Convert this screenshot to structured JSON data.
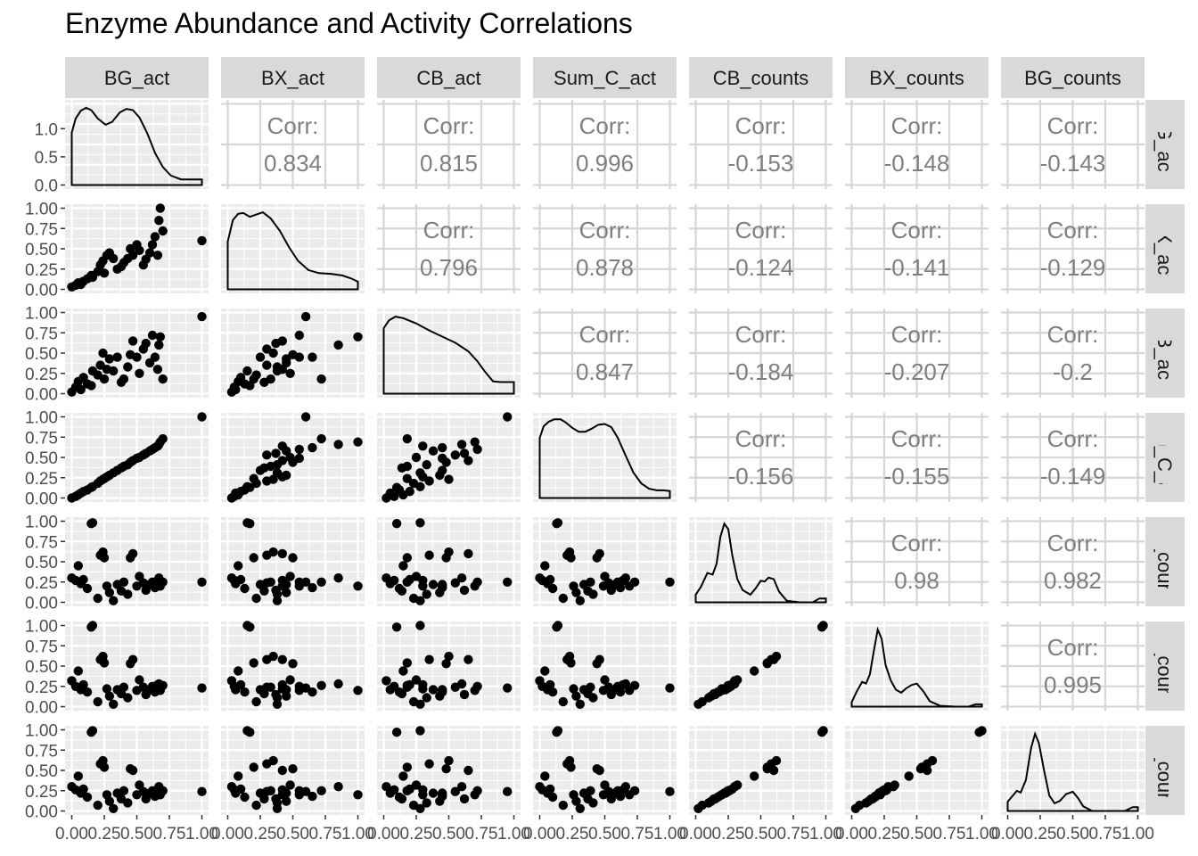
{
  "title": "Enzyme Abundance and Activity Correlations",
  "variables": [
    "BG_act",
    "BX_act",
    "CB_act",
    "Sum_C_act",
    "CB_counts",
    "BX_counts",
    "BG_counts"
  ],
  "colors": {
    "panel_bg": "#EBEBEB",
    "grid": "#FFFFFF",
    "strip_bg": "#D9D9D9",
    "corr_text": "#7F7F7F",
    "points": "#000000",
    "tick_text": "#4D4D4D"
  },
  "chart_data": {
    "type": "scatter",
    "subtype": "pairs-matrix",
    "title": "Enzyme Abundance and Activity Correlations",
    "grid": true,
    "axes": {
      "x_ticks": [
        "0.00",
        "0.25",
        "0.50",
        "0.75",
        "1.00"
      ],
      "y_ticks_first_row": [
        "0.0",
        "0.5",
        "1.0"
      ],
      "y_ticks_other_rows": [
        "0.00",
        "0.25",
        "0.50",
        "0.75",
        "1.00"
      ],
      "xlim": [
        0,
        1
      ],
      "ylim": [
        0,
        1
      ]
    },
    "correlation_label": "Corr:",
    "correlations": [
      {
        "row": "BG_act",
        "col": "BX_act",
        "value": "0.834"
      },
      {
        "row": "BG_act",
        "col": "CB_act",
        "value": "0.815"
      },
      {
        "row": "BG_act",
        "col": "Sum_C_act",
        "value": "0.996"
      },
      {
        "row": "BG_act",
        "col": "CB_counts",
        "value": "-0.153"
      },
      {
        "row": "BG_act",
        "col": "BX_counts",
        "value": "-0.148"
      },
      {
        "row": "BG_act",
        "col": "BG_counts",
        "value": "-0.143"
      },
      {
        "row": "BX_act",
        "col": "CB_act",
        "value": "0.796"
      },
      {
        "row": "BX_act",
        "col": "Sum_C_act",
        "value": "0.878"
      },
      {
        "row": "BX_act",
        "col": "CB_counts",
        "value": "-0.124"
      },
      {
        "row": "BX_act",
        "col": "BX_counts",
        "value": "-0.141"
      },
      {
        "row": "BX_act",
        "col": "BG_counts",
        "value": "-0.129"
      },
      {
        "row": "CB_act",
        "col": "Sum_C_act",
        "value": "0.847"
      },
      {
        "row": "CB_act",
        "col": "CB_counts",
        "value": "-0.184"
      },
      {
        "row": "CB_act",
        "col": "BX_counts",
        "value": "-0.207"
      },
      {
        "row": "CB_act",
        "col": "BG_counts",
        "value": "-0.2"
      },
      {
        "row": "Sum_C_act",
        "col": "CB_counts",
        "value": "-0.156"
      },
      {
        "row": "Sum_C_act",
        "col": "BX_counts",
        "value": "-0.155"
      },
      {
        "row": "Sum_C_act",
        "col": "BG_counts",
        "value": "-0.149"
      },
      {
        "row": "CB_counts",
        "col": "BX_counts",
        "value": "0.98"
      },
      {
        "row": "CB_counts",
        "col": "BG_counts",
        "value": "0.982"
      },
      {
        "row": "BX_counts",
        "col": "BG_counts",
        "value": "0.995"
      }
    ],
    "densities": {
      "BG_act": [
        [
          0.0,
          0.93
        ],
        [
          0.03,
          1.18
        ],
        [
          0.07,
          1.32
        ],
        [
          0.11,
          1.37
        ],
        [
          0.15,
          1.33
        ],
        [
          0.2,
          1.18
        ],
        [
          0.26,
          1.07
        ],
        [
          0.31,
          1.12
        ],
        [
          0.37,
          1.29
        ],
        [
          0.42,
          1.35
        ],
        [
          0.47,
          1.33
        ],
        [
          0.52,
          1.2
        ],
        [
          0.58,
          0.92
        ],
        [
          0.64,
          0.57
        ],
        [
          0.7,
          0.32
        ],
        [
          0.76,
          0.17
        ],
        [
          0.84,
          0.1
        ],
        [
          0.92,
          0.1
        ],
        [
          1.0,
          0.1
        ]
      ],
      "BX_act": [
        [
          0.0,
          0.62
        ],
        [
          0.04,
          0.9
        ],
        [
          0.08,
          0.98
        ],
        [
          0.12,
          0.99
        ],
        [
          0.17,
          0.94
        ],
        [
          0.22,
          0.97
        ],
        [
          0.27,
          1.0
        ],
        [
          0.33,
          0.92
        ],
        [
          0.4,
          0.76
        ],
        [
          0.47,
          0.55
        ],
        [
          0.54,
          0.37
        ],
        [
          0.62,
          0.25
        ],
        [
          0.7,
          0.21
        ],
        [
          0.8,
          0.2
        ],
        [
          0.88,
          0.18
        ],
        [
          0.95,
          0.14
        ],
        [
          1.0,
          0.1
        ]
      ],
      "CB_act": [
        [
          0.0,
          0.85
        ],
        [
          0.04,
          0.95
        ],
        [
          0.09,
          1.0
        ],
        [
          0.15,
          0.98
        ],
        [
          0.25,
          0.91
        ],
        [
          0.35,
          0.82
        ],
        [
          0.45,
          0.74
        ],
        [
          0.55,
          0.66
        ],
        [
          0.65,
          0.55
        ],
        [
          0.72,
          0.42
        ],
        [
          0.78,
          0.28
        ],
        [
          0.84,
          0.16
        ],
        [
          0.9,
          0.15
        ],
        [
          1.0,
          0.15
        ]
      ],
      "Sum_C_act": [
        [
          0.0,
          0.78
        ],
        [
          0.03,
          0.93
        ],
        [
          0.07,
          0.99
        ],
        [
          0.11,
          1.02
        ],
        [
          0.16,
          1.02
        ],
        [
          0.2,
          0.98
        ],
        [
          0.25,
          0.91
        ],
        [
          0.3,
          0.86
        ],
        [
          0.35,
          0.86
        ],
        [
          0.4,
          0.9
        ],
        [
          0.45,
          0.95
        ],
        [
          0.5,
          0.96
        ],
        [
          0.55,
          0.92
        ],
        [
          0.6,
          0.78
        ],
        [
          0.66,
          0.55
        ],
        [
          0.72,
          0.33
        ],
        [
          0.78,
          0.19
        ],
        [
          0.84,
          0.12
        ],
        [
          0.9,
          0.1
        ],
        [
          0.95,
          0.1
        ],
        [
          1.0,
          0.09
        ]
      ],
      "CB_counts": [
        [
          0.0,
          0.1
        ],
        [
          0.04,
          0.2
        ],
        [
          0.09,
          0.38
        ],
        [
          0.13,
          0.36
        ],
        [
          0.16,
          0.5
        ],
        [
          0.19,
          0.85
        ],
        [
          0.22,
          1.02
        ],
        [
          0.25,
          0.95
        ],
        [
          0.28,
          0.62
        ],
        [
          0.32,
          0.3
        ],
        [
          0.36,
          0.16
        ],
        [
          0.42,
          0.1
        ],
        [
          0.46,
          0.18
        ],
        [
          0.5,
          0.28
        ],
        [
          0.53,
          0.27
        ],
        [
          0.56,
          0.32
        ],
        [
          0.6,
          0.3
        ],
        [
          0.64,
          0.14
        ],
        [
          0.7,
          0.02
        ],
        [
          0.8,
          0.0
        ],
        [
          0.9,
          0.0
        ],
        [
          0.95,
          0.05
        ],
        [
          1.0,
          0.05
        ]
      ],
      "BX_counts": [
        [
          0.0,
          0.06
        ],
        [
          0.04,
          0.2
        ],
        [
          0.08,
          0.32
        ],
        [
          0.11,
          0.3
        ],
        [
          0.14,
          0.42
        ],
        [
          0.17,
          0.72
        ],
        [
          0.2,
          1.0
        ],
        [
          0.23,
          0.88
        ],
        [
          0.26,
          0.54
        ],
        [
          0.3,
          0.34
        ],
        [
          0.34,
          0.22
        ],
        [
          0.38,
          0.18
        ],
        [
          0.42,
          0.24
        ],
        [
          0.46,
          0.28
        ],
        [
          0.5,
          0.3
        ],
        [
          0.55,
          0.2
        ],
        [
          0.6,
          0.07
        ],
        [
          0.68,
          0.01
        ],
        [
          0.8,
          0.0
        ],
        [
          0.9,
          0.0
        ],
        [
          0.95,
          0.03
        ],
        [
          1.0,
          0.03
        ]
      ],
      "BG_counts": [
        [
          0.0,
          0.12
        ],
        [
          0.03,
          0.18
        ],
        [
          0.07,
          0.26
        ],
        [
          0.1,
          0.24
        ],
        [
          0.14,
          0.4
        ],
        [
          0.18,
          0.82
        ],
        [
          0.21,
          1.0
        ],
        [
          0.24,
          0.88
        ],
        [
          0.28,
          0.52
        ],
        [
          0.32,
          0.2
        ],
        [
          0.36,
          0.1
        ],
        [
          0.4,
          0.13
        ],
        [
          0.45,
          0.22
        ],
        [
          0.5,
          0.25
        ],
        [
          0.54,
          0.17
        ],
        [
          0.58,
          0.06
        ],
        [
          0.65,
          0.0
        ],
        [
          0.8,
          0.0
        ],
        [
          0.9,
          0.0
        ],
        [
          0.96,
          0.05
        ],
        [
          1.0,
          0.05
        ]
      ]
    },
    "observations": [
      [
        0.0,
        0.03,
        0.02,
        0.0,
        0.3,
        0.32,
        0.3
      ],
      [
        0.03,
        0.05,
        0.08,
        0.02,
        0.27,
        0.25,
        0.26
      ],
      [
        0.05,
        0.08,
        0.15,
        0.04,
        0.45,
        0.44,
        0.43
      ],
      [
        0.07,
        0.06,
        0.05,
        0.06,
        0.23,
        0.21,
        0.22
      ],
      [
        0.09,
        0.1,
        0.2,
        0.08,
        0.28,
        0.27,
        0.27
      ],
      [
        0.12,
        0.13,
        0.12,
        0.1,
        0.17,
        0.18,
        0.17
      ],
      [
        0.15,
        0.17,
        0.1,
        0.13,
        0.97,
        0.98,
        0.97
      ],
      [
        0.16,
        0.15,
        0.28,
        0.14,
        0.98,
        1.0,
        0.99
      ],
      [
        0.2,
        0.22,
        0.23,
        0.18,
        0.05,
        0.06,
        0.07
      ],
      [
        0.22,
        0.3,
        0.35,
        0.21,
        0.58,
        0.58,
        0.58
      ],
      [
        0.24,
        0.35,
        0.5,
        0.23,
        0.62,
        0.62,
        0.62
      ],
      [
        0.25,
        0.2,
        0.18,
        0.24,
        0.55,
        0.54,
        0.54
      ],
      [
        0.27,
        0.42,
        0.3,
        0.26,
        0.2,
        0.22,
        0.2
      ],
      [
        0.29,
        0.45,
        0.43,
        0.28,
        0.12,
        0.13,
        0.12
      ],
      [
        0.32,
        0.38,
        0.28,
        0.31,
        0.02,
        0.03,
        0.03
      ],
      [
        0.35,
        0.25,
        0.45,
        0.34,
        0.22,
        0.21,
        0.22
      ],
      [
        0.38,
        0.28,
        0.14,
        0.37,
        0.14,
        0.16,
        0.15
      ],
      [
        0.4,
        0.33,
        0.18,
        0.39,
        0.25,
        0.24,
        0.25
      ],
      [
        0.43,
        0.38,
        0.33,
        0.41,
        0.1,
        0.11,
        0.1
      ],
      [
        0.45,
        0.5,
        0.48,
        0.44,
        0.55,
        0.53,
        0.52
      ],
      [
        0.47,
        0.42,
        0.65,
        0.46,
        0.6,
        0.58,
        0.5
      ],
      [
        0.5,
        0.55,
        0.45,
        0.49,
        0.2,
        0.2,
        0.2
      ],
      [
        0.52,
        0.48,
        0.25,
        0.5,
        0.32,
        0.33,
        0.32
      ],
      [
        0.55,
        0.3,
        0.55,
        0.53,
        0.24,
        0.24,
        0.24
      ],
      [
        0.57,
        0.37,
        0.62,
        0.55,
        0.15,
        0.15,
        0.15
      ],
      [
        0.6,
        0.45,
        0.38,
        0.58,
        0.22,
        0.21,
        0.22
      ],
      [
        0.62,
        0.55,
        0.72,
        0.6,
        0.25,
        0.25,
        0.25
      ],
      [
        0.64,
        0.65,
        0.45,
        0.62,
        0.18,
        0.18,
        0.18
      ],
      [
        0.66,
        0.42,
        0.3,
        0.64,
        0.27,
        0.27,
        0.26
      ],
      [
        0.67,
        0.85,
        0.6,
        0.66,
        0.3,
        0.28,
        0.3
      ],
      [
        0.68,
        1.0,
        0.7,
        0.69,
        0.2,
        0.2,
        0.2
      ],
      [
        0.7,
        0.72,
        0.18,
        0.73,
        0.25,
        0.26,
        0.25
      ],
      [
        1.0,
        0.6,
        0.95,
        1.0,
        0.25,
        0.23,
        0.24
      ]
    ]
  }
}
